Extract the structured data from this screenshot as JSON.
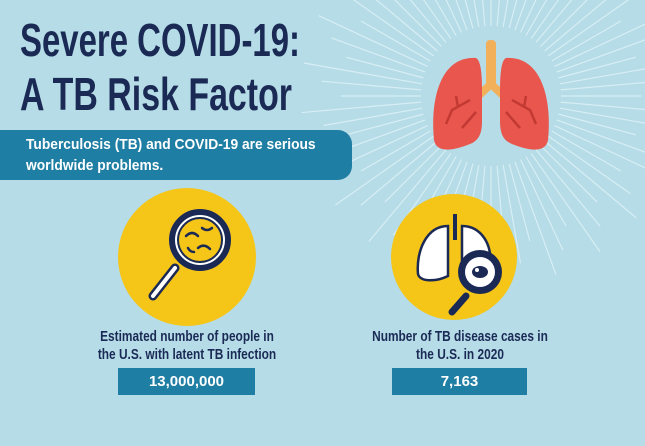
{
  "header": {
    "title_lines": [
      "Severe COVID-19:",
      "A TB Risk Factor"
    ]
  },
  "banner": {
    "text": "Tuberculosis (TB) and COVID-19 are serious worldwide problems."
  },
  "stats": [
    {
      "label": "Estimated number of people in the U.S. with latent TB infection",
      "value": "13,000,000"
    },
    {
      "label": "Number of TB disease cases in the U.S. in 2020",
      "value": "7,163"
    }
  ]
}
